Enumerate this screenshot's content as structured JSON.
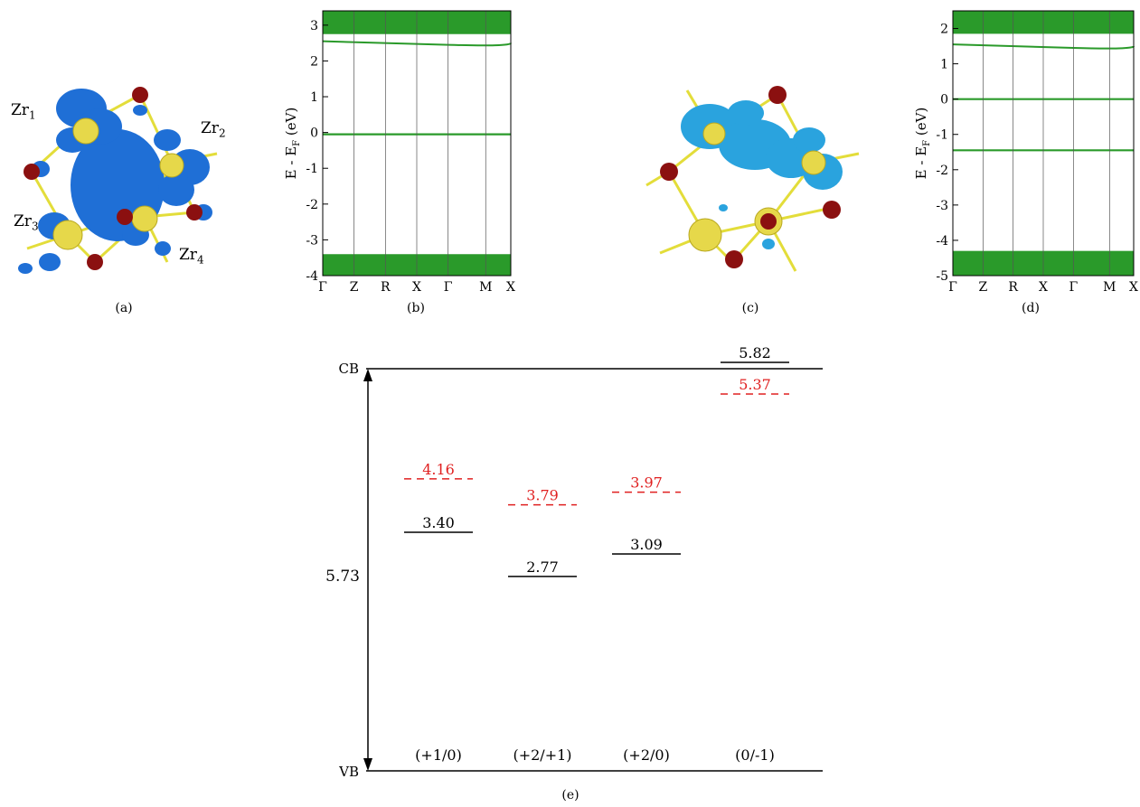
{
  "panels": {
    "a": {
      "caption": "(a)",
      "labels": [
        {
          "base": "Zr",
          "sub": "1"
        },
        {
          "base": "Zr",
          "sub": "2"
        },
        {
          "base": "Zr",
          "sub": "3"
        },
        {
          "base": "Zr",
          "sub": "4"
        }
      ]
    },
    "b": {
      "caption": "(b)"
    },
    "c": {
      "caption": "(c)"
    },
    "d": {
      "caption": "(d)"
    },
    "e": {
      "caption": "(e)"
    }
  },
  "colors": {
    "band": "#2a9a2a",
    "isosurface_a": "#1f6fd6",
    "isosurface_c": "#2aa3de",
    "zr_atom": "#e6d84a",
    "o_atom": "#8b1010",
    "bond": "#e3dd3a",
    "red_level": "#e02020",
    "black_level": "#000000"
  },
  "chart_data": [
    {
      "type": "line",
      "panel": "(b)",
      "ylabel": "E - E_F (eV)",
      "ylabel_main": "E - E",
      "ylabel_sub": "F",
      "ylabel_unit": " (eV)",
      "ylim": [
        -4,
        3.4
      ],
      "yticks": [
        -4,
        -3,
        -2,
        -1,
        0,
        1,
        2,
        3
      ],
      "ytick_labels": [
        "-4",
        "-3",
        "-2",
        "-1",
        "0",
        "1",
        "2",
        "3"
      ],
      "kpath": [
        "Γ",
        "Z",
        "R",
        "X",
        "Γ",
        "M",
        "X"
      ],
      "kpos": [
        0,
        1,
        2,
        3,
        4,
        5.2,
        6
      ],
      "bands": {
        "conduction_lowest": 2.5,
        "conduction_band_edge": 2.75,
        "defect_level": -0.05,
        "valence_top": -3.4,
        "valence_bottom": -4.0
      }
    },
    {
      "type": "line",
      "panel": "(d)",
      "ylabel": "E - E_F (eV)",
      "ylabel_main": "E - E",
      "ylabel_sub": "F",
      "ylabel_unit": " (eV)",
      "ylim": [
        -5,
        2.5
      ],
      "yticks": [
        -5,
        -4,
        -3,
        -2,
        -1,
        0,
        1,
        2
      ],
      "ytick_labels": [
        "-5",
        "-4",
        "-3",
        "-2",
        "-1",
        "0",
        "1",
        "2"
      ],
      "kpath": [
        "Γ",
        "Z",
        "R",
        "X",
        "Γ",
        "M",
        "X"
      ],
      "kpos": [
        0,
        1,
        2,
        3,
        4,
        5.2,
        6
      ],
      "bands": {
        "conduction_lowest": 1.5,
        "defect_level_1": 0.0,
        "defect_level_2": -1.45,
        "valence_top": -4.3,
        "valence_bottom": -5.0
      }
    },
    {
      "type": "diagram",
      "panel": "(e)",
      "cb_label": "CB",
      "vb_label": "VB",
      "gap_label": "5.73",
      "ylim": [
        0,
        5.73
      ],
      "transitions": [
        {
          "label": "(+1/0)",
          "black": 3.4,
          "black_label": "3.40",
          "red": 4.16,
          "red_label": "4.16"
        },
        {
          "label": "(+2/+1)",
          "black": 2.77,
          "black_label": "2.77",
          "red": 3.79,
          "red_label": "3.79"
        },
        {
          "label": "(+2/0)",
          "black": 3.09,
          "black_label": "3.09",
          "red": 3.97,
          "red_label": "3.97"
        },
        {
          "label": "(0/-1)",
          "black": 5.82,
          "black_label": "5.82",
          "red": 5.37,
          "red_label": "5.37"
        }
      ]
    }
  ]
}
